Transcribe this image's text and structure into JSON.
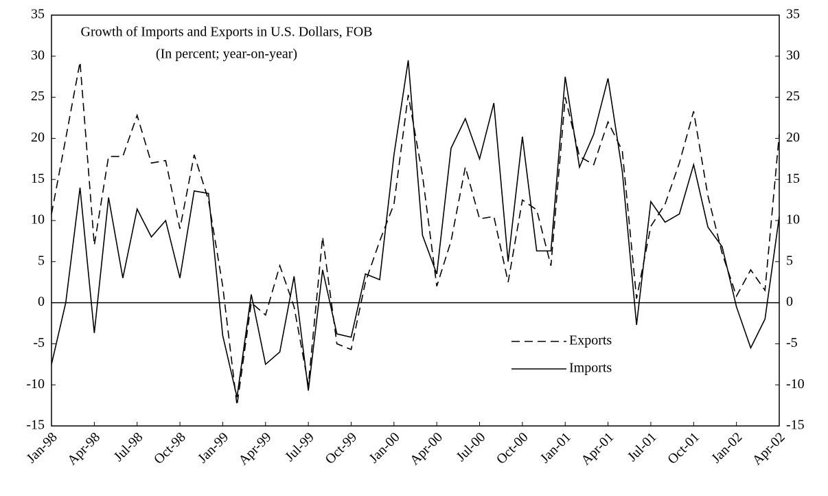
{
  "chart_data": {
    "type": "line",
    "title": "Growth of Imports and Exports in U.S. Dollars, FOB",
    "subtitle": "(In percent; year-on-year)",
    "categories": [
      "Jan-98",
      null,
      null,
      "Apr-98",
      null,
      null,
      "Jul-98",
      null,
      null,
      "Oct-98",
      null,
      null,
      "Jan-99",
      null,
      null,
      "Apr-99",
      null,
      null,
      "Jul-99",
      null,
      null,
      "Oct-99",
      null,
      null,
      "Jan-00",
      null,
      null,
      "Apr-00",
      null,
      null,
      "Jul-00",
      null,
      null,
      "Oct-00",
      null,
      null,
      "Jan-01",
      null,
      null,
      "Apr-01",
      null,
      null,
      "Jul-01",
      null,
      null,
      "Oct-01",
      null,
      null,
      "Jan-02",
      null,
      null,
      "Apr-02"
    ],
    "series": [
      {
        "name": "Exports",
        "color": "#000000",
        "style": "dashed",
        "values": [
          10.8,
          20,
          29.3,
          7,
          17.8,
          17.8,
          22.8,
          17,
          17.3,
          9,
          18,
          12.5,
          2,
          -12.5,
          0,
          -1.5,
          4.5,
          -0.5,
          -10,
          8,
          -5,
          -5.7,
          2.5,
          7.5,
          12,
          25.3,
          15.5,
          2,
          7.5,
          16.5,
          10.2,
          10.5,
          2.5,
          12.5,
          11.3,
          4.5,
          25,
          17.8,
          16.8,
          22,
          18.5,
          0.5,
          9.3,
          12,
          17,
          23.3,
          13,
          6,
          0.8,
          4,
          1.5,
          20.5
        ]
      },
      {
        "name": "Imports",
        "color": "#000000",
        "style": "solid",
        "values": [
          -7.5,
          0,
          14,
          -3.7,
          12.8,
          3,
          11.4,
          8,
          10,
          3,
          13.6,
          13.3,
          -4,
          -11.5,
          1,
          -7.5,
          -6,
          3.2,
          -10.7,
          4,
          -3.8,
          -4.2,
          3.5,
          2.8,
          18,
          29.5,
          8.2,
          3.5,
          18.8,
          22.4,
          17.5,
          24.3,
          5,
          20.2,
          6.3,
          6.3,
          27.5,
          16.5,
          20.5,
          27.3,
          16,
          -2.7,
          12.3,
          9.8,
          10.8,
          16.8,
          9.2,
          6.8,
          -0.5,
          -5.5,
          -2,
          10.5
        ]
      }
    ],
    "ylim": [
      -15,
      35
    ],
    "yticks": [
      -15,
      -10,
      -5,
      0,
      5,
      10,
      15,
      20,
      25,
      30,
      35
    ],
    "y2lim": [
      -15,
      35
    ],
    "y2ticks": [
      -15,
      -10,
      -5,
      0,
      5,
      10,
      15,
      20,
      25,
      30,
      35
    ],
    "legend": "lower right",
    "zero_line": true
  }
}
